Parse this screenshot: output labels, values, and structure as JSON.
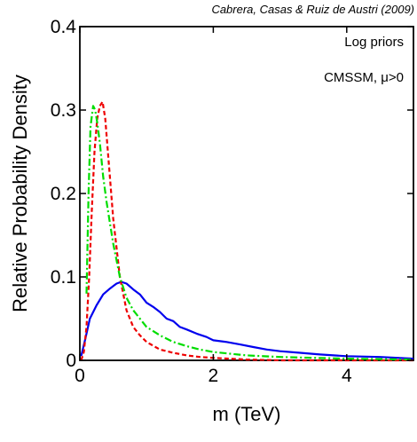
{
  "credit": "Cabrera, Casas & Ruiz de Austri (2009)",
  "chart_data": {
    "type": "line",
    "title": "",
    "xlabel": "m (TeV)",
    "ylabel": "Relative Probability Density",
    "xlim": [
      0,
      5
    ],
    "ylim": [
      0,
      0.4
    ],
    "x_ticks": [
      0,
      2,
      4
    ],
    "y_ticks": [
      0,
      0.1,
      0.2,
      0.3,
      0.4
    ],
    "x_tick_labels": [
      "0",
      "2",
      "4"
    ],
    "y_tick_labels": [
      "0",
      "0.1",
      "0.2",
      "0.3",
      "0.4"
    ],
    "grid": false,
    "annotations": [
      "Log priors",
      "CMSSM, μ>0"
    ],
    "series": [
      {
        "color": "#0000ee",
        "dash": "solid",
        "x": [
          0.02,
          0.08,
          0.15,
          0.25,
          0.35,
          0.45,
          0.55,
          0.62,
          0.7,
          0.8,
          0.9,
          1.0,
          1.1,
          1.2,
          1.3,
          1.4,
          1.5,
          1.6,
          1.75,
          1.9,
          2.0,
          2.2,
          2.4,
          2.6,
          2.8,
          3.0,
          3.3,
          3.6,
          4.0,
          4.5,
          5.0
        ],
        "y": [
          0.005,
          0.025,
          0.05,
          0.066,
          0.079,
          0.086,
          0.092,
          0.094,
          0.092,
          0.085,
          0.079,
          0.069,
          0.064,
          0.058,
          0.05,
          0.047,
          0.04,
          0.037,
          0.032,
          0.028,
          0.024,
          0.022,
          0.019,
          0.016,
          0.013,
          0.011,
          0.009,
          0.007,
          0.005,
          0.004,
          0.002
        ]
      },
      {
        "color": "#ee0000",
        "dash": "dashed",
        "x": [
          0.02,
          0.06,
          0.1,
          0.14,
          0.18,
          0.22,
          0.26,
          0.3,
          0.34,
          0.38,
          0.42,
          0.5,
          0.6,
          0.7,
          0.8,
          0.9,
          1.0,
          1.2,
          1.4,
          1.6,
          1.8,
          2.0,
          2.5,
          3.0,
          4.0,
          5.0
        ],
        "y": [
          0.0,
          0.01,
          0.04,
          0.1,
          0.18,
          0.25,
          0.29,
          0.305,
          0.31,
          0.29,
          0.25,
          0.17,
          0.1,
          0.06,
          0.04,
          0.03,
          0.022,
          0.013,
          0.009,
          0.006,
          0.004,
          0.003,
          0.001,
          0.0,
          0.0,
          0.0
        ]
      },
      {
        "color": "#00dd00",
        "dash": "dashdot",
        "x": [
          0.1,
          0.13,
          0.16,
          0.2,
          0.23,
          0.26,
          0.3,
          0.35,
          0.4,
          0.5,
          0.6,
          0.7,
          0.8,
          0.9,
          1.0,
          1.2,
          1.4,
          1.6,
          1.8,
          2.0,
          2.5,
          3.0,
          3.5,
          4.0,
          5.0
        ],
        "y": [
          0.08,
          0.2,
          0.28,
          0.305,
          0.3,
          0.285,
          0.26,
          0.22,
          0.19,
          0.14,
          0.1,
          0.075,
          0.06,
          0.05,
          0.04,
          0.03,
          0.022,
          0.017,
          0.013,
          0.01,
          0.006,
          0.004,
          0.003,
          0.002,
          0.001
        ]
      }
    ]
  }
}
